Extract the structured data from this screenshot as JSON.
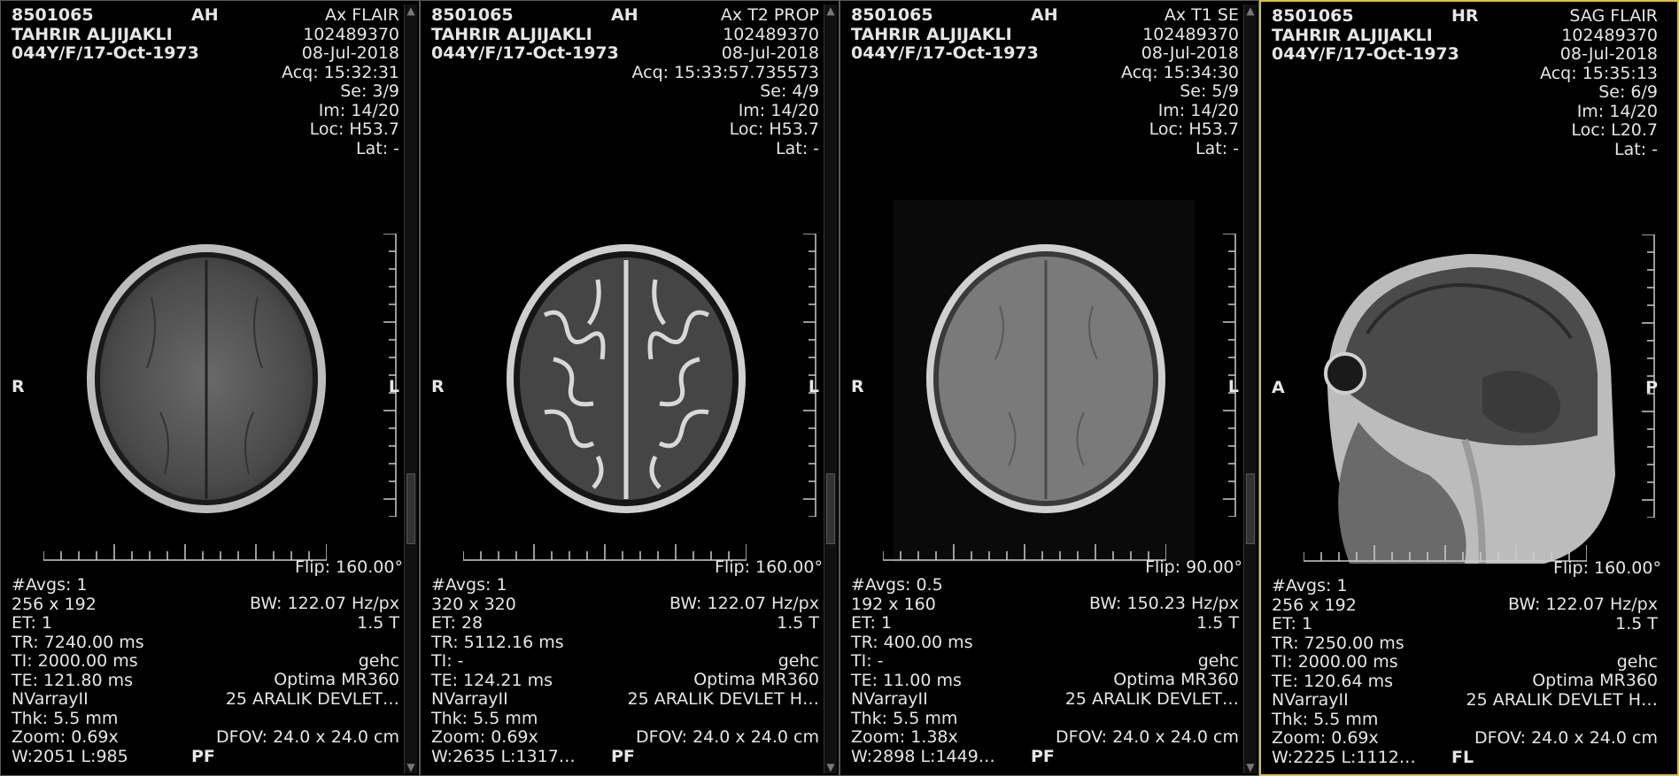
{
  "viewports": [
    {
      "patient_id": "8501065",
      "patient_name": "TAHRIR ALJIJAKLI",
      "patient_age": "044Y/F/17-Oct-1973",
      "orient_top": "AH",
      "series_desc": "Ax  FLAIR",
      "accession": "102489370",
      "study_date": "08-Jul-2018",
      "acq_time": "Acq: 15:32:31",
      "series": "Se: 3/9",
      "image": "Im: 14/20",
      "location": "Loc: H53.7",
      "lat": "Lat: -",
      "orient_left": "R",
      "orient_right": "L",
      "flip": "Flip: 160.00°",
      "avgs": "#Avgs: 1",
      "matrix": "256 x 192",
      "et": "ET: 1",
      "tr": "TR: 7240.00 ms",
      "ti": "TI: 2000.00 ms",
      "te": "TE: 121.80 ms",
      "coil": "NVarrayII",
      "thk": "Thk: 5.5 mm",
      "zoom": "Zoom: 0.69x",
      "wl": "W:2051  L:985",
      "bw": "BW: 122.07 Hz/px",
      "field": "1.5 T",
      "vendor": "gehc",
      "model": "Optima MR360",
      "institution": "25 ARALIK DEVLET…",
      "dfov": "DFOV: 24.0 x 24.0 cm",
      "orient_bottom": "PF"
    },
    {
      "patient_id": "8501065",
      "patient_name": "TAHRIR ALJIJAKLI",
      "patient_age": "044Y/F/17-Oct-1973",
      "orient_top": "AH",
      "series_desc": "Ax T2 PROP",
      "accession": "102489370",
      "study_date": "08-Jul-2018",
      "acq_time": "Acq: 15:33:57.735573",
      "series": "Se: 4/9",
      "image": "Im: 14/20",
      "location": "Loc: H53.7",
      "lat": "Lat: -",
      "orient_left": "R",
      "orient_right": "L",
      "flip": "Flip: 160.00°",
      "avgs": "#Avgs: 1",
      "matrix": "320 x 320",
      "et": "ET: 28",
      "tr": "TR: 5112.16 ms",
      "ti": "TI: -",
      "te": "TE: 124.21 ms",
      "coil": "NVarrayII",
      "thk": "Thk: 5.5 mm",
      "zoom": "Zoom: 0.69x",
      "wl": "W:2635  L:1317…",
      "bw": "BW: 122.07 Hz/px",
      "field": "1.5 T",
      "vendor": "gehc",
      "model": "Optima MR360",
      "institution": "25 ARALIK DEVLET H…",
      "dfov": "DFOV: 24.0 x 24.0 cm",
      "orient_bottom": "PF"
    },
    {
      "patient_id": "8501065",
      "patient_name": "TAHRIR ALJIJAKLI",
      "patient_age": "044Y/F/17-Oct-1973",
      "orient_top": "AH",
      "series_desc": "Ax T1 SE",
      "accession": "102489370",
      "study_date": "08-Jul-2018",
      "acq_time": "Acq: 15:34:30",
      "series": "Se: 5/9",
      "image": "Im: 14/20",
      "location": "Loc: H53.7",
      "lat": "Lat: -",
      "orient_left": "R",
      "orient_right": "L",
      "flip": "Flip: 90.00°",
      "avgs": "#Avgs: 0.5",
      "matrix": "192 x 160",
      "et": "ET: 1",
      "tr": "TR: 400.00 ms",
      "ti": "TI: -",
      "te": "TE: 11.00 ms",
      "coil": "NVarrayII",
      "thk": "Thk: 5.5 mm",
      "zoom": "Zoom: 1.38x",
      "wl": "W:2898  L:1449…",
      "bw": "BW: 150.23 Hz/px",
      "field": "1.5 T",
      "vendor": "gehc",
      "model": "Optima MR360",
      "institution": "25 ARALIK DEVLET…",
      "dfov": "DFOV: 24.0 x 24.0 cm",
      "orient_bottom": "PF"
    },
    {
      "patient_id": "8501065",
      "patient_name": "TAHRIR ALJIJAKLI",
      "patient_age": "044Y/F/17-Oct-1973",
      "orient_top": "HR",
      "series_desc": "SAG  FLAIR",
      "accession": "102489370",
      "study_date": "08-Jul-2018",
      "acq_time": "Acq: 15:35:13",
      "series": "Se: 6/9",
      "image": "Im: 14/20",
      "location": "Loc: L20.7",
      "lat": "Lat: -",
      "orient_left": "A",
      "orient_right": "P",
      "flip": "Flip: 160.00°",
      "avgs": "#Avgs: 1",
      "matrix": "256 x 192",
      "et": "ET: 1",
      "tr": "TR: 7250.00 ms",
      "ti": "TI: 2000.00 ms",
      "te": "TE: 120.64 ms",
      "coil": "NVarrayII",
      "thk": "Thk: 5.5 mm",
      "zoom": "Zoom: 0.69x",
      "wl": "W:2225  L:1112…",
      "bw": "BW: 122.07 Hz/px",
      "field": "1.5 T",
      "vendor": "gehc",
      "model": "Optima MR360",
      "institution": "25 ARALIK DEVLET H…",
      "dfov": "DFOV: 24.0 x 24.0 cm",
      "orient_bottom": "FL"
    }
  ],
  "colors": {
    "active_border": "#d9c24a",
    "overlay_text": "#e6e6e6"
  }
}
